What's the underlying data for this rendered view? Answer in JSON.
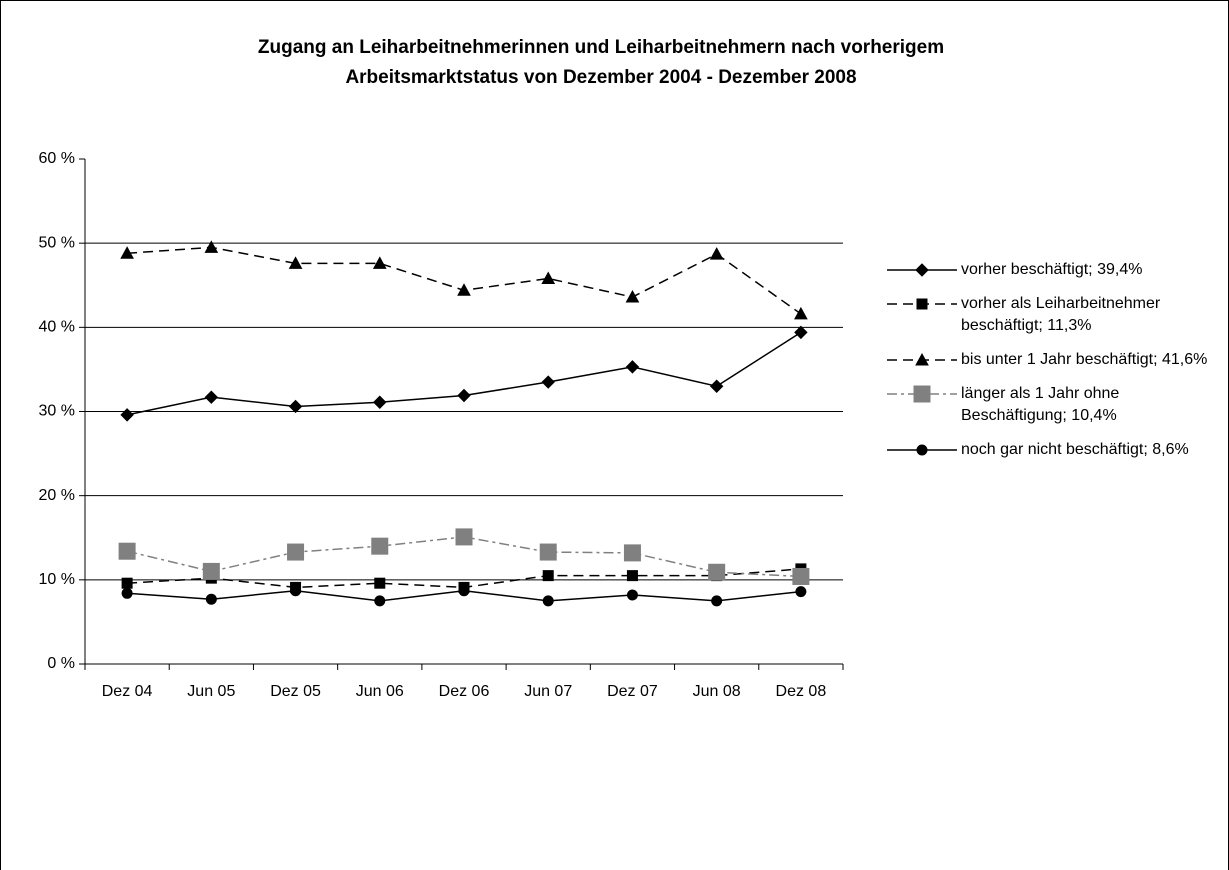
{
  "chart_data": {
    "type": "line",
    "title": [
      "Zugang an Leiharbeitnehmerinnen und Leiharbeitnehmern nach vorherigem",
      "Arbeitsmarktstatus von Dezember 2004 - Dezember 2008"
    ],
    "categories": [
      "Dez 04",
      "Jun 05",
      "Dez 05",
      "Jun 06",
      "Dez 06",
      "Jun 07",
      "Dez 07",
      "Jun 08",
      "Dez 08"
    ],
    "ylim": [
      0,
      60
    ],
    "yticks": [
      {
        "value": 0,
        "label": "0 %"
      },
      {
        "value": 10,
        "label": "10 %"
      },
      {
        "value": 20,
        "label": "20 %"
      },
      {
        "value": 30,
        "label": "30 %"
      },
      {
        "value": 40,
        "label": "40 %"
      },
      {
        "value": 50,
        "label": "50 %"
      },
      {
        "value": 60,
        "label": "60 %"
      }
    ],
    "grid": true,
    "legend": "right",
    "series": [
      {
        "name": "vorher beschäftigt; 39,4%",
        "color": "#000000",
        "marker": "diamond",
        "dash": "solid",
        "values": [
          29.6,
          31.7,
          30.6,
          31.1,
          31.9,
          33.5,
          35.3,
          33.0,
          39.4
        ]
      },
      {
        "name": "vorher als Leiharbeitnehmer beschäftigt; 11,3%",
        "color": "#000000",
        "marker": "square",
        "dash": "dashed",
        "values": [
          9.6,
          10.2,
          9.1,
          9.6,
          9.1,
          10.5,
          10.5,
          10.5,
          11.3
        ]
      },
      {
        "name": "bis unter 1 Jahr beschäftigt; 41,6%",
        "color": "#000000",
        "marker": "triangle",
        "dash": "dashed",
        "values": [
          48.8,
          49.5,
          47.6,
          47.6,
          44.4,
          45.8,
          43.6,
          48.7,
          41.6
        ]
      },
      {
        "name": "länger als 1 Jahr ohne Beschäftigung; 10,4%",
        "color": "#808080",
        "marker": "bigsquare",
        "dash": "dashdot",
        "values": [
          13.4,
          11.0,
          13.3,
          14.0,
          15.1,
          13.3,
          13.2,
          10.9,
          10.4
        ]
      },
      {
        "name": "noch gar nicht beschäftigt; 8,6%",
        "color": "#000000",
        "marker": "circle",
        "dash": "solid",
        "values": [
          8.4,
          7.7,
          8.7,
          7.5,
          8.7,
          7.5,
          8.2,
          7.5,
          8.6
        ]
      }
    ]
  }
}
